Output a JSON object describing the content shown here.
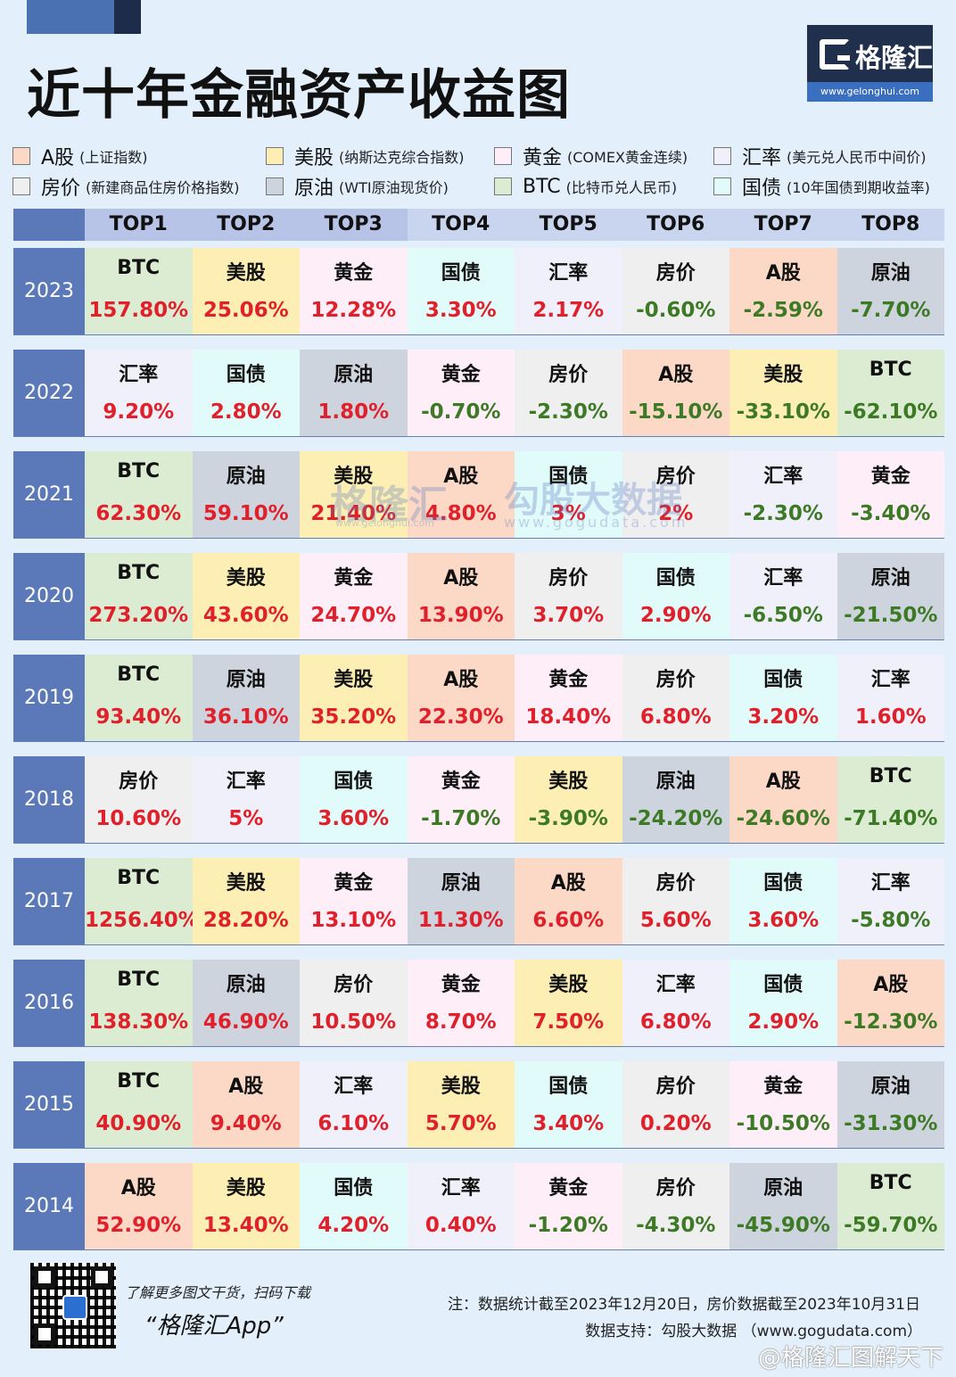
{
  "title": "近十年金融资产收益图",
  "logo": {
    "text": "格隆汇",
    "url": "www.gelonghui.com"
  },
  "legend": [
    {
      "id": "a",
      "name": "A股",
      "note": "(上证指数)",
      "color": "#fbd9c6"
    },
    {
      "id": "us",
      "name": "美股",
      "note": "(纳斯达克综合指数)",
      "color": "#fdefb4"
    },
    {
      "id": "gold",
      "name": "黄金",
      "note": "(COMEX黄金连续)",
      "color": "#fdeef8"
    },
    {
      "id": "fx",
      "name": "汇率",
      "note": "(美元兑人民币中间价)",
      "color": "#f0f0fa"
    },
    {
      "id": "house",
      "name": "房价",
      "note": "(新建商品住房价格指数)",
      "color": "#efefef"
    },
    {
      "id": "oil",
      "name": "原油",
      "note": "(WTI原油现货价)",
      "color": "#ced4de"
    },
    {
      "id": "btc",
      "name": "BTC",
      "note": "(比特币兑人民币)",
      "color": "#dcecd2"
    },
    {
      "id": "bond",
      "name": "国债",
      "note": "(10年国债到期收益率)",
      "color": "#e1fafa"
    }
  ],
  "chart_data": {
    "type": "table",
    "title": "近十年金融资产收益图",
    "columns": [
      "TOP1",
      "TOP2",
      "TOP3",
      "TOP4",
      "TOP5",
      "TOP6",
      "TOP7",
      "TOP8"
    ],
    "rows": [
      {
        "year": "2023",
        "cells": [
          {
            "asset": "BTC",
            "value": "157.80%"
          },
          {
            "asset": "美股",
            "value": "25.06%"
          },
          {
            "asset": "黄金",
            "value": "12.28%"
          },
          {
            "asset": "国债",
            "value": "3.30%"
          },
          {
            "asset": "汇率",
            "value": "2.17%"
          },
          {
            "asset": "房价",
            "value": "-0.60%"
          },
          {
            "asset": "A股",
            "value": "-2.59%"
          },
          {
            "asset": "原油",
            "value": "-7.70%"
          }
        ]
      },
      {
        "year": "2022",
        "cells": [
          {
            "asset": "汇率",
            "value": "9.20%"
          },
          {
            "asset": "国债",
            "value": "2.80%"
          },
          {
            "asset": "原油",
            "value": "1.80%"
          },
          {
            "asset": "黄金",
            "value": "-0.70%"
          },
          {
            "asset": "房价",
            "value": "-2.30%"
          },
          {
            "asset": "A股",
            "value": "-15.10%"
          },
          {
            "asset": "美股",
            "value": "-33.10%"
          },
          {
            "asset": "BTC",
            "value": "-62.10%"
          }
        ]
      },
      {
        "year": "2021",
        "cells": [
          {
            "asset": "BTC",
            "value": "62.30%"
          },
          {
            "asset": "原油",
            "value": "59.10%"
          },
          {
            "asset": "美股",
            "value": "21.40%"
          },
          {
            "asset": "A股",
            "value": "4.80%"
          },
          {
            "asset": "国债",
            "value": "3%"
          },
          {
            "asset": "房价",
            "value": "2%"
          },
          {
            "asset": "汇率",
            "value": "-2.30%"
          },
          {
            "asset": "黄金",
            "value": "-3.40%"
          }
        ]
      },
      {
        "year": "2020",
        "cells": [
          {
            "asset": "BTC",
            "value": "273.20%"
          },
          {
            "asset": "美股",
            "value": "43.60%"
          },
          {
            "asset": "黄金",
            "value": "24.70%"
          },
          {
            "asset": "A股",
            "value": "13.90%"
          },
          {
            "asset": "房价",
            "value": "3.70%"
          },
          {
            "asset": "国债",
            "value": "2.90%"
          },
          {
            "asset": "汇率",
            "value": "-6.50%"
          },
          {
            "asset": "原油",
            "value": "-21.50%"
          }
        ]
      },
      {
        "year": "2019",
        "cells": [
          {
            "asset": "BTC",
            "value": "93.40%"
          },
          {
            "asset": "原油",
            "value": "36.10%"
          },
          {
            "asset": "美股",
            "value": "35.20%"
          },
          {
            "asset": "A股",
            "value": "22.30%"
          },
          {
            "asset": "黄金",
            "value": "18.40%"
          },
          {
            "asset": "房价",
            "value": "6.80%"
          },
          {
            "asset": "国债",
            "value": "3.20%"
          },
          {
            "asset": "汇率",
            "value": "1.60%"
          }
        ]
      },
      {
        "year": "2018",
        "cells": [
          {
            "asset": "房价",
            "value": "10.60%"
          },
          {
            "asset": "汇率",
            "value": "5%"
          },
          {
            "asset": "国债",
            "value": "3.60%"
          },
          {
            "asset": "黄金",
            "value": "-1.70%"
          },
          {
            "asset": "美股",
            "value": "-3.90%"
          },
          {
            "asset": "原油",
            "value": "-24.20%"
          },
          {
            "asset": "A股",
            "value": "-24.60%"
          },
          {
            "asset": "BTC",
            "value": "-71.40%"
          }
        ]
      },
      {
        "year": "2017",
        "cells": [
          {
            "asset": "BTC",
            "value": "1256.40%"
          },
          {
            "asset": "美股",
            "value": "28.20%"
          },
          {
            "asset": "黄金",
            "value": "13.10%"
          },
          {
            "asset": "原油",
            "value": "11.30%"
          },
          {
            "asset": "A股",
            "value": "6.60%"
          },
          {
            "asset": "房价",
            "value": "5.60%"
          },
          {
            "asset": "国债",
            "value": "3.60%"
          },
          {
            "asset": "汇率",
            "value": "-5.80%"
          }
        ]
      },
      {
        "year": "2016",
        "cells": [
          {
            "asset": "BTC",
            "value": "138.30%"
          },
          {
            "asset": "原油",
            "value": "46.90%"
          },
          {
            "asset": "房价",
            "value": "10.50%"
          },
          {
            "asset": "黄金",
            "value": "8.70%"
          },
          {
            "asset": "美股",
            "value": "7.50%"
          },
          {
            "asset": "汇率",
            "value": "6.80%"
          },
          {
            "asset": "国债",
            "value": "2.90%"
          },
          {
            "asset": "A股",
            "value": "-12.30%"
          }
        ]
      },
      {
        "year": "2015",
        "cells": [
          {
            "asset": "BTC",
            "value": "40.90%"
          },
          {
            "asset": "A股",
            "value": "9.40%"
          },
          {
            "asset": "汇率",
            "value": "6.10%"
          },
          {
            "asset": "美股",
            "value": "5.70%"
          },
          {
            "asset": "国债",
            "value": "3.40%"
          },
          {
            "asset": "房价",
            "value": "0.20%"
          },
          {
            "asset": "黄金",
            "value": "-10.50%"
          },
          {
            "asset": "原油",
            "value": "-31.30%"
          }
        ]
      },
      {
        "year": "2014",
        "cells": [
          {
            "asset": "A股",
            "value": "52.90%"
          },
          {
            "asset": "美股",
            "value": "13.40%"
          },
          {
            "asset": "国债",
            "value": "4.20%"
          },
          {
            "asset": "汇率",
            "value": "0.40%"
          },
          {
            "asset": "黄金",
            "value": "-1.20%"
          },
          {
            "asset": "房价",
            "value": "-4.30%"
          },
          {
            "asset": "原油",
            "value": "-45.90%"
          },
          {
            "asset": "BTC",
            "value": "-59.70%"
          }
        ]
      }
    ]
  },
  "colors": {
    "positive": "#e0202a",
    "negative": "#3d7a25",
    "year_bg": "#5b79b8"
  },
  "watermark": {
    "brand": "格隆汇",
    "brand_url": "www.gelonghui.com",
    "partner": "勾股大数据",
    "partner_url": "www.gogudata.com"
  },
  "footer": {
    "promo_line": "了解更多图文干货，扫码下载",
    "promo_app": "“格隆汇App”",
    "note": "注：数据统计截至2023年12月20日，房价数据截至2023年10月31日",
    "source": "数据支持：勾股大数据 （www.gogudata.com）",
    "mark": "@格隆汇图解天下"
  }
}
